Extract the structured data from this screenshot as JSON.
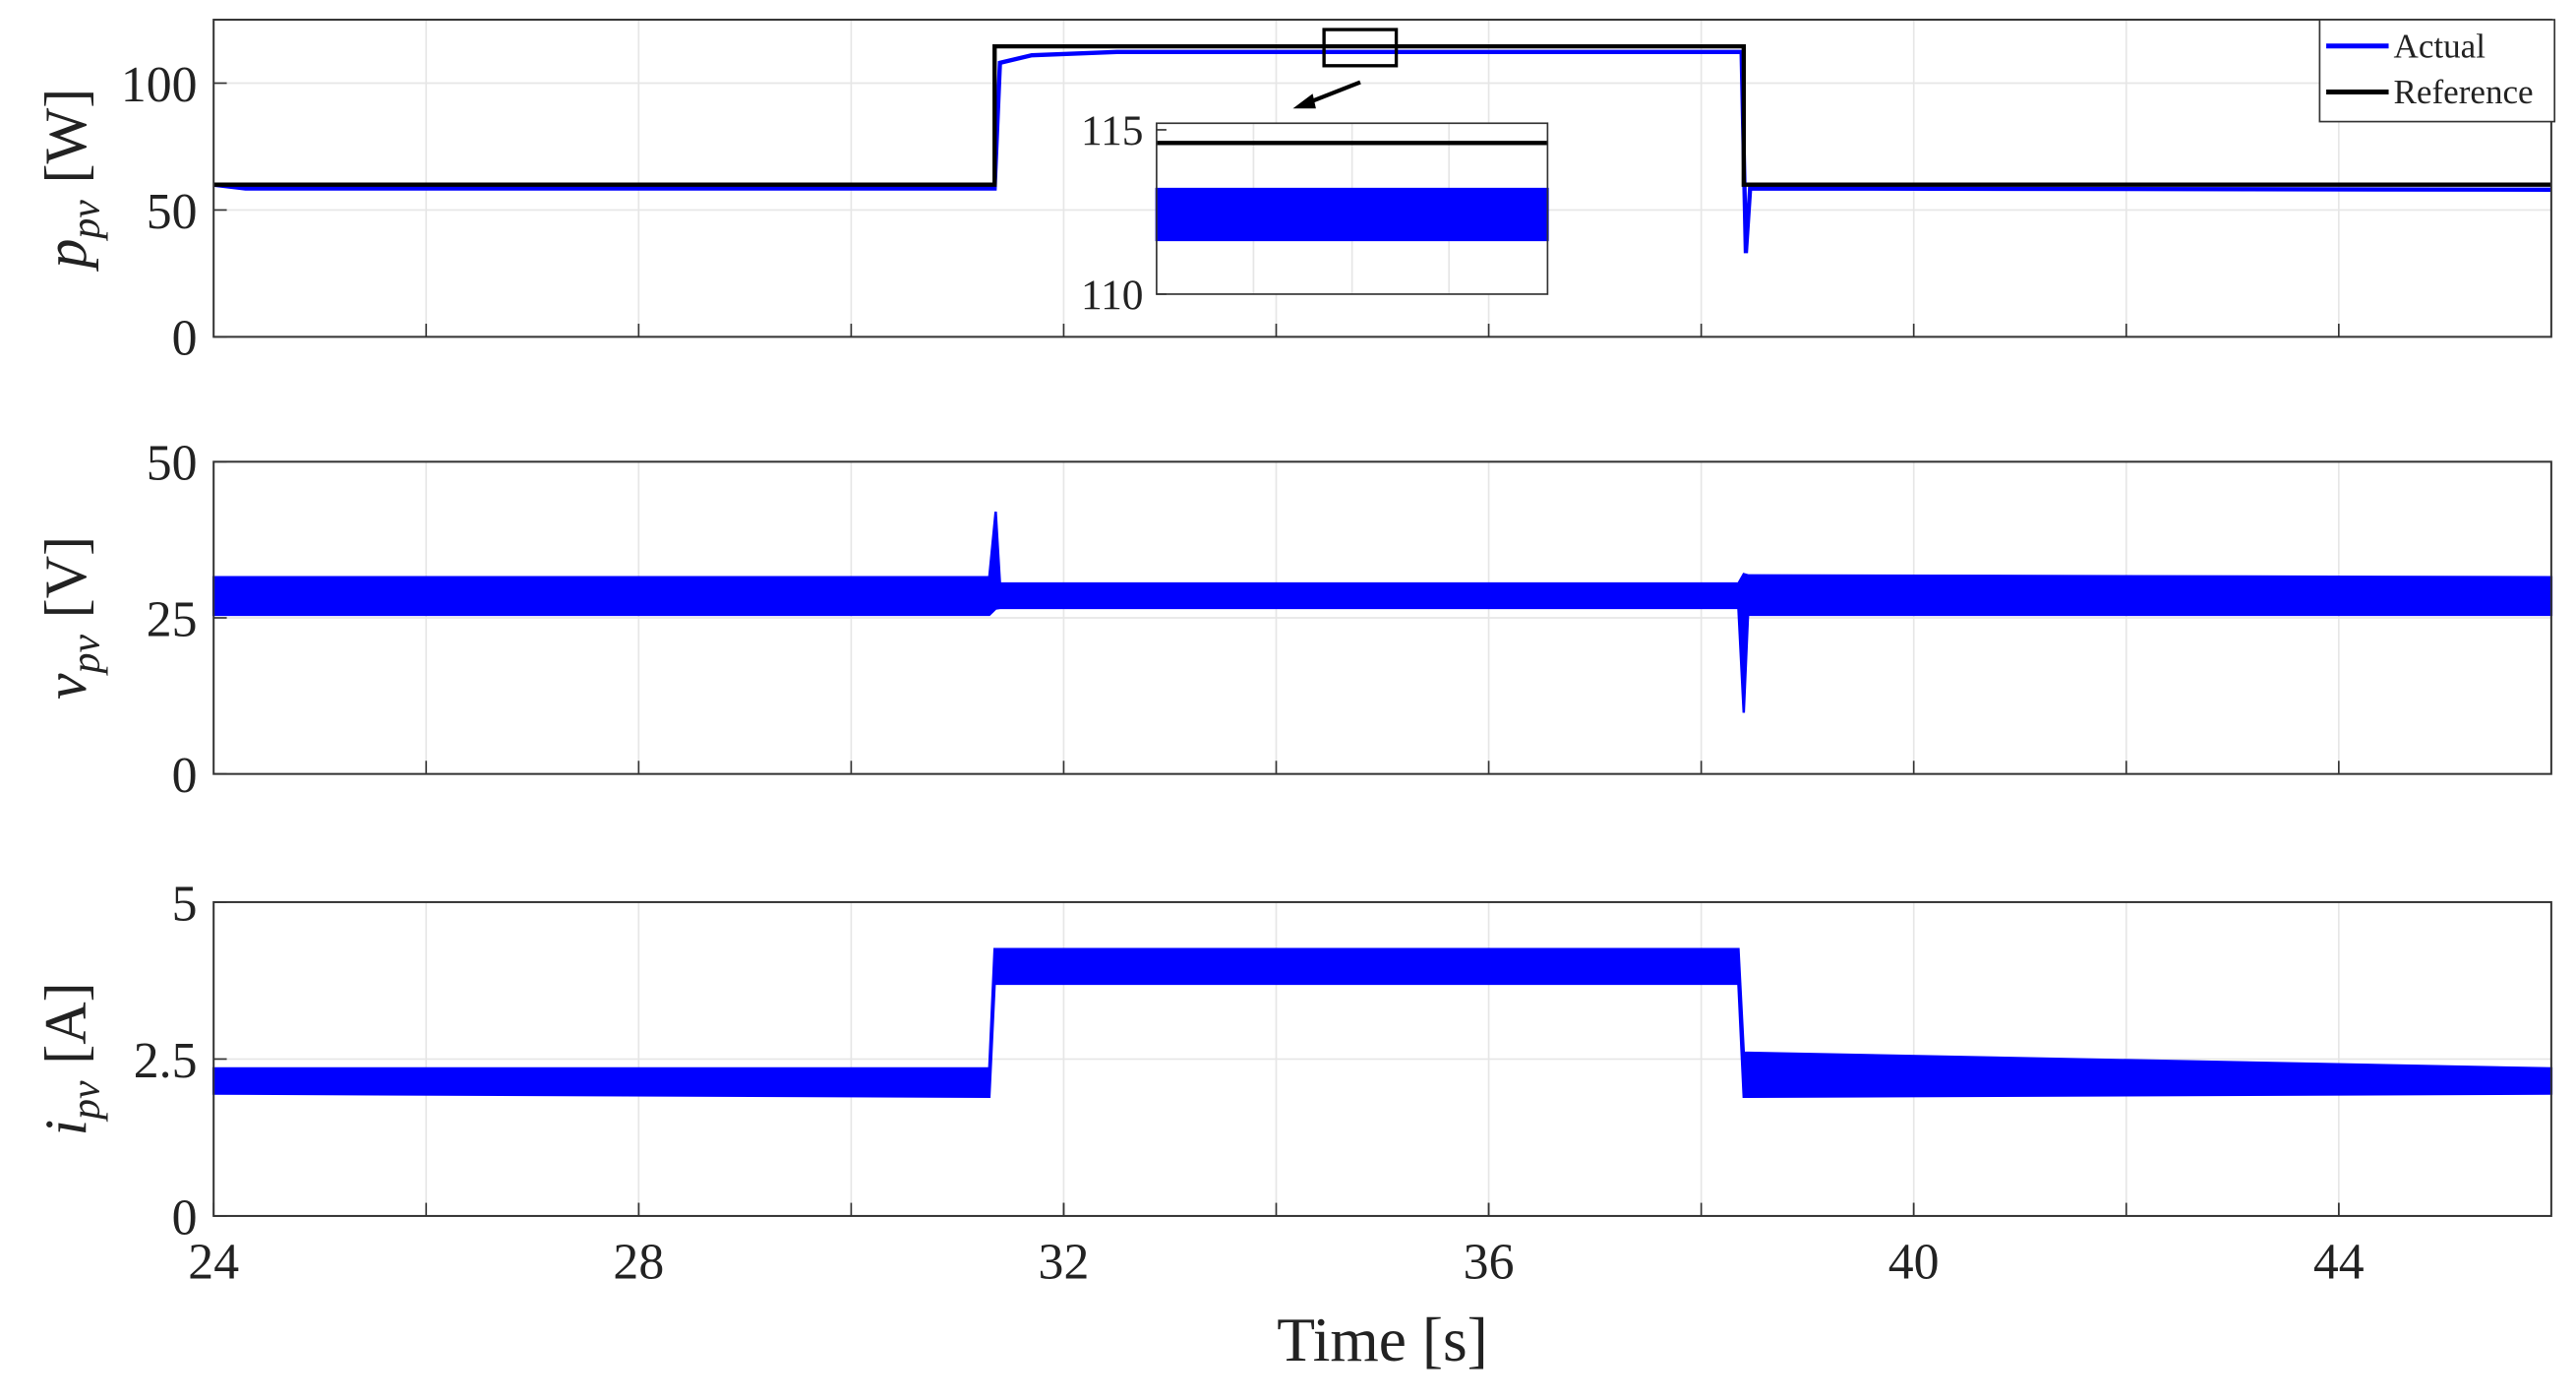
{
  "chart_data": [
    {
      "type": "line",
      "ylabel": {
        "symbol": "p",
        "sub": "pv",
        "unit": "[W]"
      },
      "xlim": [
        24,
        46
      ],
      "ylim": [
        0,
        125
      ],
      "yticks": [
        0,
        50,
        100
      ],
      "xgrid": [
        26,
        28,
        30,
        32,
        34,
        36,
        38,
        40,
        42,
        44
      ],
      "grid": true,
      "legend": "upper right",
      "series": [
        {
          "name": "Actual",
          "color": "#0000ff",
          "x": [
            24,
            24.3,
            31.35,
            31.4,
            31.7,
            32.5,
            38.38,
            38.42,
            38.46,
            46
          ],
          "values": [
            60,
            58.5,
            58.5,
            108,
            111,
            112.3,
            112.3,
            33,
            58.5,
            58
          ]
        },
        {
          "name": "Reference",
          "color": "#000000",
          "x": [
            24,
            31.35,
            31.35,
            38.4,
            38.4,
            46
          ],
          "values": [
            60,
            60,
            114.5,
            114.5,
            60,
            60
          ]
        }
      ],
      "inset": {
        "type": "band",
        "xlim": [
          34.45,
          35.13
        ],
        "ylim": [
          110,
          115.2
        ],
        "yticks": [
          110,
          115
        ],
        "series": [
          {
            "color": "#0000ff",
            "x": [
              34.45,
              35.13
            ],
            "upper": [
              113.2,
              113.2
            ],
            "lower": [
              111.65,
              111.65
            ]
          },
          {
            "color": "#000000",
            "x": [
              34.45,
              35.13
            ],
            "values": [
              114.6,
              114.6
            ]
          }
        ]
      }
    },
    {
      "type": "band",
      "ylabel": {
        "symbol": "v",
        "sub": "pv",
        "unit": "[V]"
      },
      "xlim": [
        24,
        46
      ],
      "ylim": [
        0,
        50
      ],
      "yticks": [
        0,
        25,
        50
      ],
      "xgrid": [
        26,
        28,
        30,
        32,
        34,
        36,
        38,
        40,
        42,
        44
      ],
      "grid": true,
      "series": [
        {
          "color": "#0000ff",
          "x": [
            24,
            31.3,
            31.36,
            31.4,
            38.35,
            38.4,
            38.44,
            46
          ],
          "upper": [
            31.5,
            31.5,
            42,
            30.5,
            30.5,
            32,
            31.8,
            31.5
          ],
          "lower": [
            25.5,
            25.5,
            26.5,
            26.6,
            26.6,
            9.8,
            25.5,
            25.5
          ]
        }
      ]
    },
    {
      "type": "band",
      "ylabel": {
        "symbol": "i",
        "sub": "pv",
        "unit": "[A]"
      },
      "xlabel": "Time [s]",
      "xlim": [
        24,
        46
      ],
      "ylim": [
        0,
        5
      ],
      "yticks": [
        0,
        2.5,
        5
      ],
      "xticks": [
        24,
        28,
        32,
        36,
        40,
        44
      ],
      "xgrid": [
        26,
        28,
        30,
        32,
        34,
        36,
        38,
        40,
        42,
        44
      ],
      "grid": true,
      "series": [
        {
          "color": "#0000ff",
          "x": [
            24,
            31.3,
            31.35,
            38.35,
            38.4,
            46
          ],
          "upper": [
            2.35,
            2.35,
            4.25,
            4.25,
            2.6,
            2.35
          ],
          "lower": [
            1.95,
            1.9,
            3.7,
            3.7,
            1.9,
            1.95
          ]
        }
      ]
    }
  ]
}
